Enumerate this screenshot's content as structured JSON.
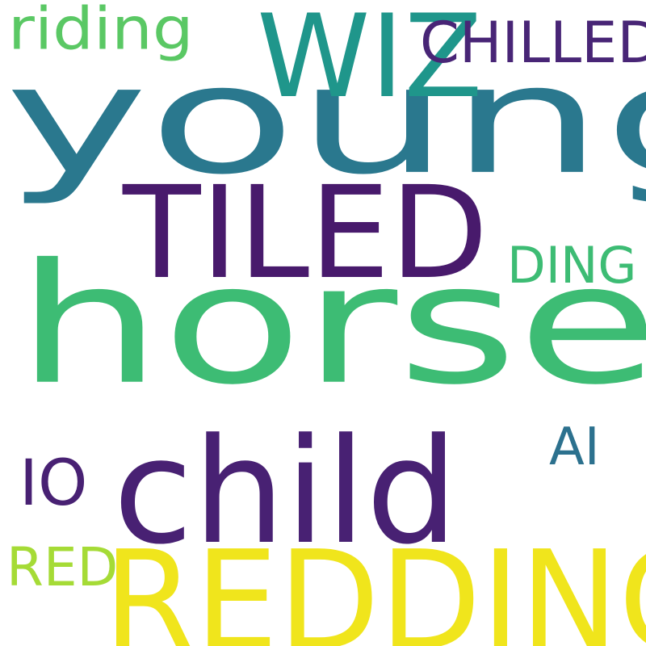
{
  "words": [
    {
      "text": "young",
      "color": "#2a788e"
    },
    {
      "text": "horse",
      "color": "#3dbc74"
    },
    {
      "text": "child",
      "color": "#482173"
    },
    {
      "text": "REDDING",
      "color": "#f0e51c"
    },
    {
      "text": "TILED",
      "color": "#481a6c"
    },
    {
      "text": "riding",
      "color": "#5ac864"
    },
    {
      "text": "WIZ",
      "color": "#1f968b"
    },
    {
      "text": "CHILLED",
      "color": "#482576"
    },
    {
      "text": "DING",
      "color": "#3dbc74"
    },
    {
      "text": "AI",
      "color": "#2c718e"
    },
    {
      "text": "IO",
      "color": "#482173"
    },
    {
      "text": "RED",
      "color": "#a5db36"
    }
  ]
}
